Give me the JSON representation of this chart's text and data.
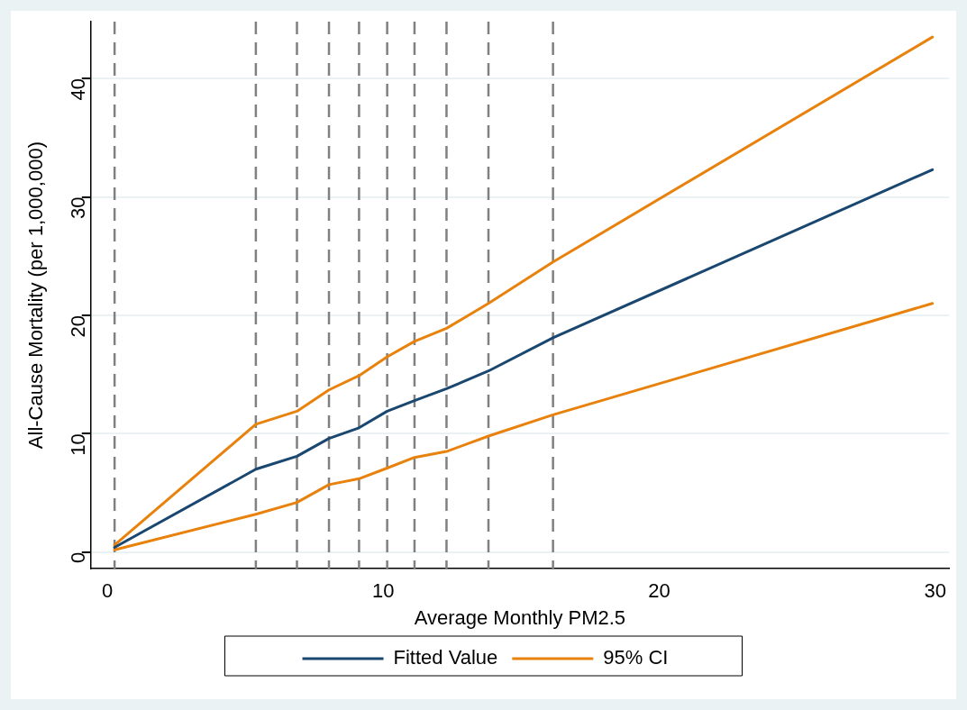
{
  "chart_data": {
    "type": "line",
    "xlabel": "Average Monthly PM2.5",
    "ylabel": "All-Cause Mortality (per 1,000,000)",
    "x": [
      0.26,
      5.38,
      6.87,
      8.03,
      9.12,
      10.14,
      11.13,
      12.29,
      13.81,
      16.15,
      29.9
    ],
    "series": [
      {
        "name": "Fitted Value",
        "color": "#1a476f",
        "values": [
          0.4,
          7.0,
          8.1,
          9.6,
          10.5,
          11.9,
          12.8,
          13.8,
          15.3,
          18.1,
          32.3
        ]
      },
      {
        "name": "95% CI",
        "color": "#e8820c",
        "values": [
          0.6,
          10.8,
          11.9,
          13.7,
          14.9,
          16.5,
          17.8,
          18.9,
          21.0,
          24.5,
          43.5
        ]
      },
      {
        "color": "#e8820c",
        "values": [
          0.2,
          3.2,
          4.2,
          5.7,
          6.2,
          7.1,
          8.0,
          8.5,
          9.8,
          11.6,
          21.0
        ]
      }
    ],
    "xlim": [
      -0.6,
      30.5
    ],
    "xticks": [
      0,
      10,
      20,
      30
    ],
    "ylim": [
      -1.4,
      44.8
    ],
    "yticks": [
      0,
      10,
      20,
      30,
      40
    ],
    "grid": "y",
    "legend": "bottom",
    "marker": "none",
    "line_style": "solid",
    "ref_lines": [
      {
        "axis": "x",
        "value": 0.26,
        "color": "#808080",
        "line_style": "dashed"
      },
      {
        "axis": "x",
        "value": 5.38,
        "color": "#808080",
        "line_style": "dashed"
      },
      {
        "axis": "x",
        "value": 6.87,
        "color": "#808080",
        "line_style": "dashed"
      },
      {
        "axis": "x",
        "value": 8.03,
        "color": "#808080",
        "line_style": "dashed"
      },
      {
        "axis": "x",
        "value": 9.12,
        "color": "#808080",
        "line_style": "dashed"
      },
      {
        "axis": "x",
        "value": 10.14,
        "color": "#808080",
        "line_style": "dashed"
      },
      {
        "axis": "x",
        "value": 11.13,
        "color": "#808080",
        "line_style": "dashed"
      },
      {
        "axis": "x",
        "value": 12.29,
        "color": "#808080",
        "line_style": "dashed"
      },
      {
        "axis": "x",
        "value": 13.81,
        "color": "#808080",
        "line_style": "dashed"
      },
      {
        "axis": "x",
        "value": 16.15,
        "color": "#808080",
        "line_style": "dashed"
      }
    ]
  }
}
